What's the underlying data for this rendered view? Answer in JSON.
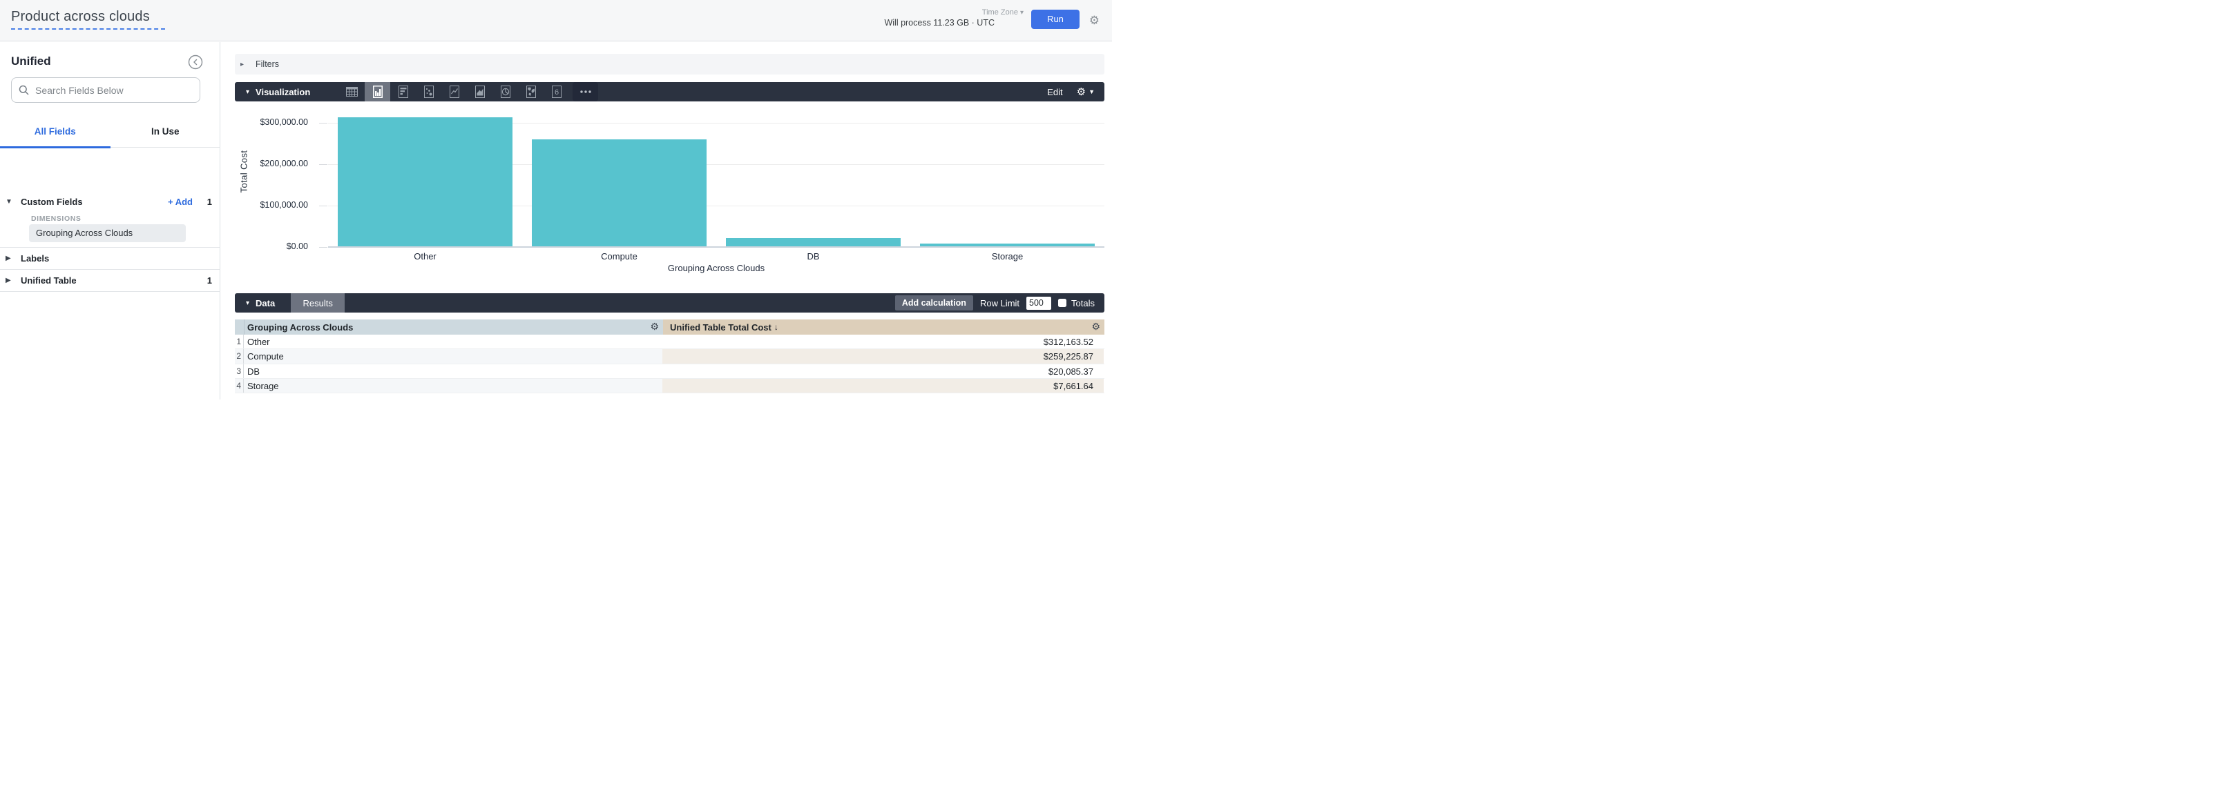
{
  "header": {
    "title": "Product across clouds",
    "process_text": "Will process 11.23 GB · UTC",
    "timezone_label": "Time Zone",
    "run_label": "Run"
  },
  "sidebar": {
    "view_name": "Unified",
    "search_placeholder": "Search Fields Below",
    "tabs": {
      "all_fields": "All Fields",
      "in_use": "In Use",
      "active": "All Fields"
    },
    "custom_fields": {
      "label": "Custom Fields",
      "add_label": "+ Add",
      "count": "1",
      "group_label": "DIMENSIONS",
      "field": "Grouping Across Clouds"
    },
    "labels_section": {
      "label": "Labels"
    },
    "unified_table_section": {
      "label": "Unified Table",
      "count": "1"
    }
  },
  "filters": {
    "label": "Filters"
  },
  "visualization": {
    "label": "Visualization",
    "edit_label": "Edit",
    "selected_type": "column",
    "types": [
      "table",
      "column",
      "bar",
      "scatter",
      "line",
      "area",
      "pie",
      "map",
      "single-value",
      "more"
    ]
  },
  "chart_data": {
    "type": "bar",
    "categories": [
      "Other",
      "Compute",
      "DB",
      "Storage"
    ],
    "values": [
      312163.52,
      259225.87,
      20085.37,
      7661.64
    ],
    "title": "",
    "xlabel": "Grouping Across Clouds",
    "ylabel": "Total Cost",
    "ylim": [
      0,
      340000
    ],
    "yticks": [
      {
        "value": 0,
        "label": "$0.00"
      },
      {
        "value": 100000,
        "label": "$100,000.00"
      },
      {
        "value": 200000,
        "label": "$200,000.00"
      },
      {
        "value": 300000,
        "label": "$300,000.00"
      }
    ],
    "grid": "horizontal",
    "legend": "none",
    "bar_color": "#57c3ce"
  },
  "data_panel": {
    "label": "Data",
    "results_tab": "Results",
    "add_calculation": "Add calculation",
    "row_limit_label": "Row Limit",
    "row_limit_value": "500",
    "totals_label": "Totals",
    "totals_checked": false
  },
  "table": {
    "columns": [
      {
        "label": "Grouping Across Clouds",
        "sort": ""
      },
      {
        "label": "Unified Table Total Cost",
        "sort": "desc",
        "sort_arrow": "↓"
      }
    ],
    "rows": [
      {
        "num": "1",
        "dimension": "Other",
        "value": "$312,163.52"
      },
      {
        "num": "2",
        "dimension": "Compute",
        "value": "$259,225.87"
      },
      {
        "num": "3",
        "dimension": "DB",
        "value": "$20,085.37"
      },
      {
        "num": "4",
        "dimension": "Storage",
        "value": "$7,661.64"
      }
    ]
  },
  "colors": {
    "accent_blue": "#3d71e6",
    "link_blue": "#2e6bde",
    "bar_teal": "#57c3ce",
    "dark_bar": "#2b3240",
    "dimension_header_bg": "#cdd9df",
    "measure_header_bg": "#ddcfba",
    "even_row_dimension_bg": "#f5f7f9",
    "even_row_measure_bg": "#f2ede6"
  }
}
